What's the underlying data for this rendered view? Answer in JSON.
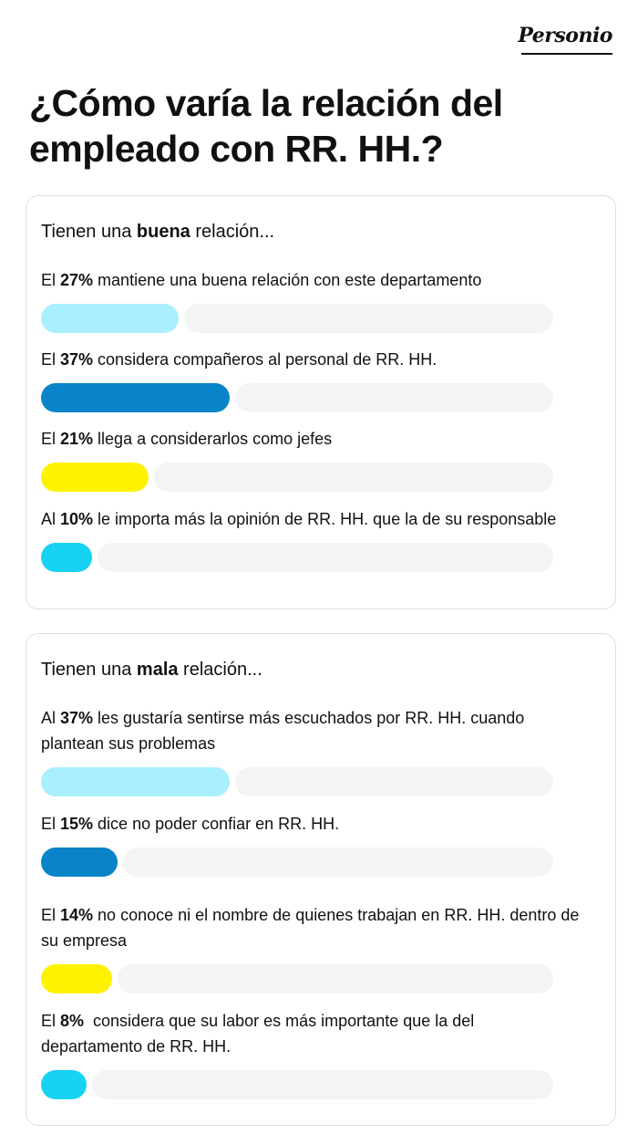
{
  "brand": "Personio",
  "title": "¿Cómo varía la relación del empleado con RR. HH.?",
  "colors": {
    "light_blue": "#a9effd",
    "dark_blue": "#0a84c9",
    "yellow": "#fff200",
    "cyan": "#17d2f3",
    "track": "#f4f4f4"
  },
  "chart_data": [
    {
      "type": "bar",
      "heading_pre": "Tienen una ",
      "heading_bold": "buena",
      "heading_post": " relación...",
      "items": [
        {
          "pre": "El ",
          "bold": "27%",
          "post": " mantiene una buena relación con este departamento",
          "value": 27,
          "color": "light_blue"
        },
        {
          "pre": "El ",
          "bold": "37%",
          "post": " considera compañeros al personal de RR. HH.",
          "value": 37,
          "color": "dark_blue"
        },
        {
          "pre": "El ",
          "bold": "21%",
          "post": " llega a considerarlos como jefes",
          "value": 21,
          "color": "yellow"
        },
        {
          "pre": "Al ",
          "bold": "10%",
          "post": " le importa más la opinión de RR. HH. que la de su responsable",
          "value": 10,
          "color": "cyan"
        }
      ]
    },
    {
      "type": "bar",
      "heading_pre": "Tienen una ",
      "heading_bold": "mala",
      "heading_post": " relación...",
      "items": [
        {
          "pre": "Al ",
          "bold": "37%",
          "post": " les gustaría sentirse más escuchados por RR. HH. cuando plantean sus problemas",
          "value": 37,
          "color": "light_blue"
        },
        {
          "pre": "El ",
          "bold": "15%",
          "post": " dice no poder confiar en RR. HH.",
          "value": 15,
          "color": "dark_blue"
        },
        {
          "pre": "El ",
          "bold": "14%",
          "post": " no conoce ni el nombre de quienes trabajan en RR. HH. dentro de su empresa",
          "value": 14,
          "color": "yellow"
        },
        {
          "pre": "El ",
          "bold": "8%",
          "post": "  considera que su labor es más importante que la del departamento de RR. HH.",
          "value": 8,
          "color": "cyan"
        }
      ]
    }
  ]
}
